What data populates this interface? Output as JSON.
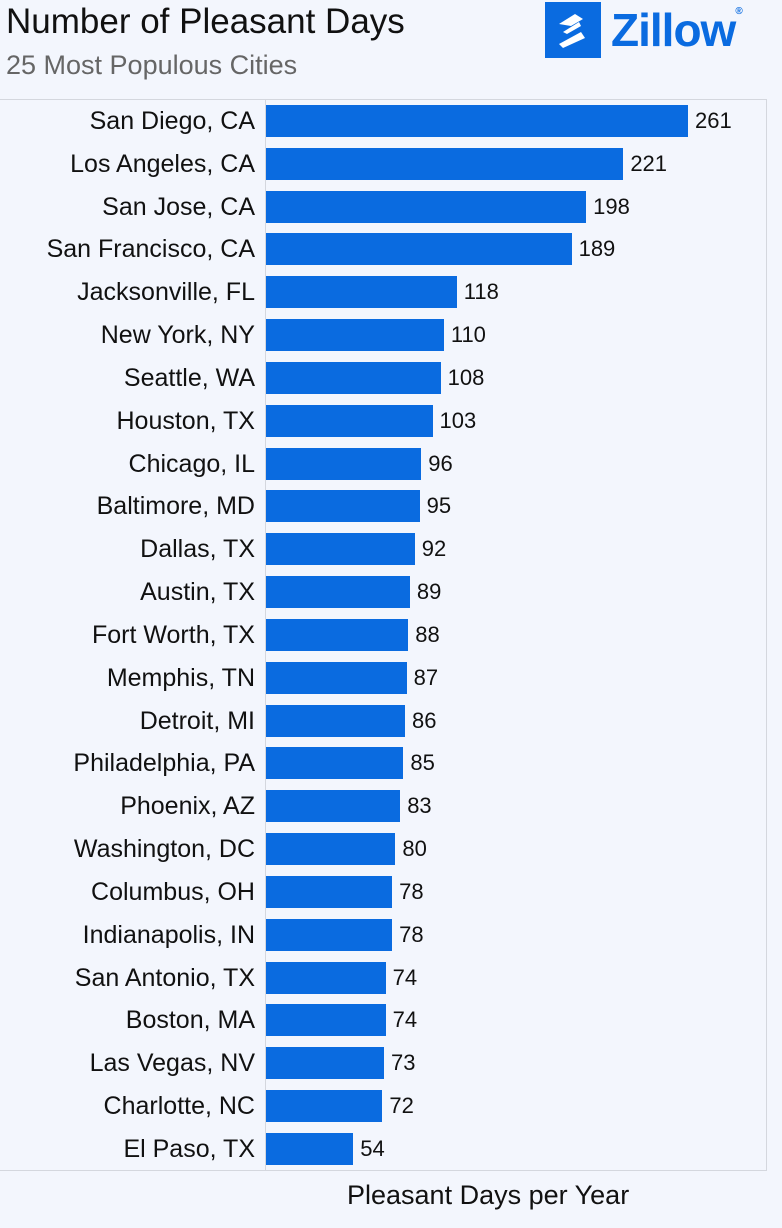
{
  "chart_data": {
    "type": "bar",
    "orientation": "horizontal",
    "title": "Number of Pleasant Days",
    "subtitle": "25 Most Populous Cities",
    "xlabel": "Pleasant Days per Year",
    "ylabel": "",
    "xlim": [
      0,
      310
    ],
    "grid": false,
    "bar_color": "#0a6be0",
    "categories": [
      "San Diego, CA",
      "Los Angeles, CA",
      "San Jose, CA",
      "San Francisco, CA",
      "Jacksonville, FL",
      "New York, NY",
      "Seattle, WA",
      "Houston, TX",
      "Chicago, IL",
      "Baltimore, MD",
      "Dallas, TX",
      "Austin, TX",
      "Fort Worth, TX",
      "Memphis, TN",
      "Detroit, MI",
      "Philadelphia, PA",
      "Phoenix, AZ",
      "Washington, DC",
      "Columbus, OH",
      "Indianapolis, IN",
      "San Antonio, TX",
      "Boston, MA",
      "Las Vegas, NV",
      "Charlotte, NC",
      "El Paso, TX"
    ],
    "values": [
      261,
      221,
      198,
      189,
      118,
      110,
      108,
      103,
      96,
      95,
      92,
      89,
      88,
      87,
      86,
      85,
      83,
      80,
      78,
      78,
      74,
      74,
      73,
      72,
      54
    ]
  },
  "logo": {
    "text": "Zillow",
    "icon": "zillow-house-icon",
    "color": "#0a6be0"
  }
}
